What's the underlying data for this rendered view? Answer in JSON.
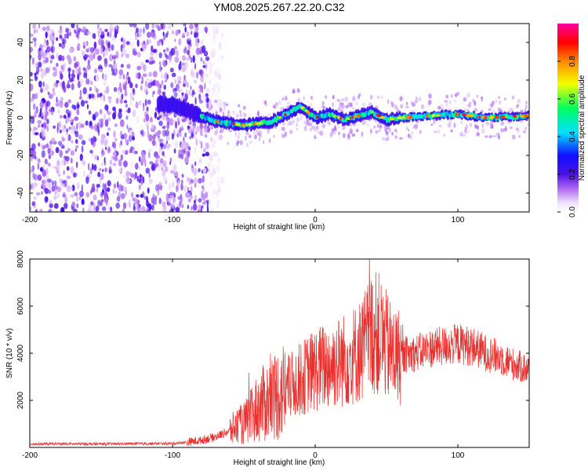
{
  "title": "YM08.2025.267.22.20.C32",
  "chart_data": [
    {
      "type": "heatmap",
      "xlabel": "Height of straight line (km)",
      "ylabel": "Frequency (Hz)",
      "xlim": [
        -200,
        150
      ],
      "ylim": [
        -50,
        50
      ],
      "xticks": [
        -200,
        -100,
        0,
        100
      ],
      "xtick_labels": [
        "-200",
        "-100",
        "0",
        "100"
      ],
      "yticks": [
        -40,
        -20,
        0,
        20,
        40
      ],
      "ytick_labels": [
        "-40",
        "-20",
        "0",
        "20",
        "40"
      ],
      "colorbar": {
        "label": "Normalized spectral amplitude",
        "range": [
          0,
          1
        ],
        "ticks": [
          0.0,
          0.2,
          0.4,
          0.6,
          0.8
        ],
        "tick_labels": [
          "0.0",
          "0.2",
          "0.4",
          "0.6",
          "0.8"
        ]
      },
      "ridge_center_hz": {
        "x": [
          -100,
          -90,
          -80,
          -70,
          -60,
          -50,
          -40,
          -30,
          -20,
          -15,
          -10,
          0,
          10,
          20,
          30,
          40,
          50,
          60,
          80,
          100,
          120,
          150
        ],
        "y": [
          7,
          4,
          1,
          -2,
          -3,
          -4,
          -3,
          -2,
          2,
          4,
          6,
          0,
          2,
          -1,
          1,
          3,
          -1,
          0,
          1,
          2,
          0,
          1
        ]
      },
      "noise_region_km": [
        -200,
        -75
      ]
    },
    {
      "type": "line",
      "xlabel": "Height of straight line (km)",
      "ylabel": "SNR (10 * v/v)",
      "xlim": [
        -200,
        150
      ],
      "ylim": [
        0,
        8000
      ],
      "xticks": [
        -200,
        -100,
        0,
        100
      ],
      "xtick_labels": [
        "-200",
        "-100",
        "0",
        "100"
      ],
      "yticks": [
        2000,
        4000,
        6000,
        8000
      ],
      "ytick_labels": [
        "2000",
        "4000",
        "6000",
        "8000"
      ],
      "color": "#e8312e",
      "series": [
        {
          "name": "SNR",
          "x": [
            -200,
            -150,
            -120,
            -100,
            -90,
            -80,
            -70,
            -60,
            -55,
            -50,
            -45,
            -40,
            -35,
            -30,
            -20,
            -10,
            0,
            10,
            20,
            30,
            35,
            40,
            45,
            50,
            55,
            60,
            70,
            80,
            90,
            100,
            110,
            120,
            130,
            140,
            150
          ],
          "y": [
            150,
            150,
            160,
            170,
            220,
            300,
            450,
            700,
            900,
            1000,
            1300,
            1700,
            1900,
            2100,
            2500,
            2900,
            3300,
            3500,
            3700,
            4000,
            4400,
            4900,
            4800,
            4300,
            3900,
            3900,
            4000,
            4200,
            4300,
            4400,
            4300,
            4000,
            3800,
            3500,
            3300
          ]
        }
      ]
    }
  ]
}
